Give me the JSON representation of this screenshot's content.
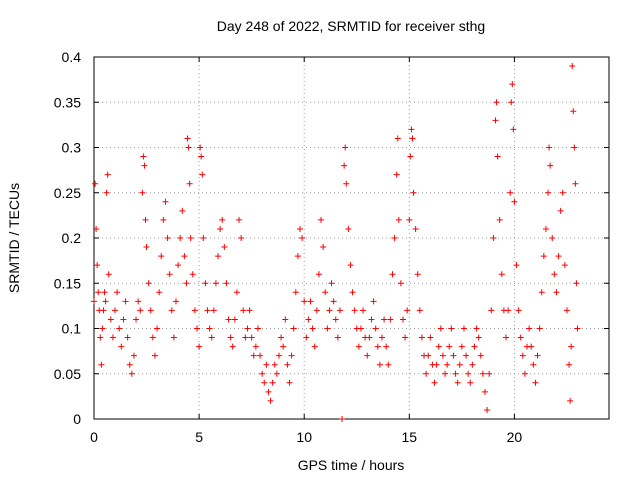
{
  "chart_data": {
    "type": "scatter",
    "title": "Day 248 of 2022, SRMTID for receiver sthg",
    "xlabel": "GPS time / hours",
    "ylabel": "SRMTID / TECUs",
    "xlim": [
      0,
      24.5
    ],
    "ylim": [
      0,
      0.4
    ],
    "xticks": [
      0,
      5,
      10,
      15,
      20
    ],
    "xtick_labels": [
      "0",
      "5",
      "10",
      "15",
      "20"
    ],
    "yticks": [
      0,
      0.05,
      0.1,
      0.15,
      0.2,
      0.25,
      0.3,
      0.35,
      0.4
    ],
    "ytick_labels": [
      "0",
      "0.05",
      "0.1",
      "0.15",
      "0.2",
      "0.25",
      "0.3",
      "0.35",
      "0.4"
    ],
    "grid": true,
    "marker": "plus",
    "color": "#ff0000",
    "series": [
      {
        "name": "SRMTID",
        "points": [
          [
            0.0,
            0.13
          ],
          [
            0.05,
            0.26
          ],
          [
            0.1,
            0.21
          ],
          [
            0.15,
            0.17
          ],
          [
            0.2,
            0.14
          ],
          [
            0.25,
            0.12
          ],
          [
            0.3,
            0.09
          ],
          [
            0.35,
            0.06
          ],
          [
            0.4,
            0.1
          ],
          [
            0.45,
            0.12
          ],
          [
            0.5,
            0.14
          ],
          [
            0.55,
            0.13
          ],
          [
            0.6,
            0.25
          ],
          [
            0.65,
            0.27
          ],
          [
            0.7,
            0.16
          ],
          [
            0.8,
            0.11
          ],
          [
            0.9,
            0.09
          ],
          [
            1.0,
            0.12
          ],
          [
            1.1,
            0.14
          ],
          [
            1.2,
            0.1
          ],
          [
            1.3,
            0.08
          ],
          [
            1.4,
            0.11
          ],
          [
            1.5,
            0.13
          ],
          [
            1.6,
            0.09
          ],
          [
            1.7,
            0.06
          ],
          [
            1.8,
            0.05
          ],
          [
            1.9,
            0.07
          ],
          [
            2.0,
            0.11
          ],
          [
            2.1,
            0.13
          ],
          [
            2.2,
            0.12
          ],
          [
            2.3,
            0.25
          ],
          [
            2.35,
            0.29
          ],
          [
            2.4,
            0.28
          ],
          [
            2.45,
            0.22
          ],
          [
            2.5,
            0.19
          ],
          [
            2.6,
            0.15
          ],
          [
            2.7,
            0.12
          ],
          [
            2.8,
            0.09
          ],
          [
            2.9,
            0.07
          ],
          [
            3.0,
            0.1
          ],
          [
            3.1,
            0.14
          ],
          [
            3.2,
            0.18
          ],
          [
            3.3,
            0.22
          ],
          [
            3.4,
            0.24
          ],
          [
            3.5,
            0.2
          ],
          [
            3.6,
            0.16
          ],
          [
            3.7,
            0.12
          ],
          [
            3.8,
            0.09
          ],
          [
            3.9,
            0.13
          ],
          [
            4.0,
            0.17
          ],
          [
            4.1,
            0.2
          ],
          [
            4.2,
            0.23
          ],
          [
            4.3,
            0.18
          ],
          [
            4.4,
            0.15
          ],
          [
            4.45,
            0.31
          ],
          [
            4.5,
            0.3
          ],
          [
            4.55,
            0.26
          ],
          [
            4.6,
            0.2
          ],
          [
            4.7,
            0.16
          ],
          [
            4.8,
            0.12
          ],
          [
            4.9,
            0.1
          ],
          [
            5.0,
            0.08
          ],
          [
            5.05,
            0.3
          ],
          [
            5.1,
            0.29
          ],
          [
            5.15,
            0.27
          ],
          [
            5.2,
            0.2
          ],
          [
            5.3,
            0.15
          ],
          [
            5.4,
            0.12
          ],
          [
            5.5,
            0.1
          ],
          [
            5.6,
            0.09
          ],
          [
            5.7,
            0.12
          ],
          [
            5.8,
            0.15
          ],
          [
            5.9,
            0.18
          ],
          [
            6.0,
            0.21
          ],
          [
            6.1,
            0.22
          ],
          [
            6.2,
            0.19
          ],
          [
            6.3,
            0.15
          ],
          [
            6.4,
            0.11
          ],
          [
            6.5,
            0.09
          ],
          [
            6.6,
            0.08
          ],
          [
            6.7,
            0.11
          ],
          [
            6.8,
            0.14
          ],
          [
            6.9,
            0.22
          ],
          [
            7.0,
            0.2
          ],
          [
            7.1,
            0.12
          ],
          [
            7.2,
            0.09
          ],
          [
            7.3,
            0.1
          ],
          [
            7.4,
            0.12
          ],
          [
            7.5,
            0.09
          ],
          [
            7.6,
            0.07
          ],
          [
            7.7,
            0.08
          ],
          [
            7.8,
            0.1
          ],
          [
            7.9,
            0.07
          ],
          [
            8.0,
            0.05
          ],
          [
            8.1,
            0.04
          ],
          [
            8.2,
            0.06
          ],
          [
            8.3,
            0.03
          ],
          [
            8.4,
            0.02
          ],
          [
            8.5,
            0.04
          ],
          [
            8.6,
            0.06
          ],
          [
            8.7,
            0.05
          ],
          [
            8.8,
            0.07
          ],
          [
            8.9,
            0.09
          ],
          [
            9.0,
            0.08
          ],
          [
            9.1,
            0.11
          ],
          [
            9.2,
            0.06
          ],
          [
            9.3,
            0.04
          ],
          [
            9.4,
            0.07
          ],
          [
            9.5,
            0.1
          ],
          [
            9.6,
            0.14
          ],
          [
            9.7,
            0.18
          ],
          [
            9.8,
            0.21
          ],
          [
            9.9,
            0.2
          ],
          [
            10.0,
            0.13
          ],
          [
            10.1,
            0.09
          ],
          [
            10.2,
            0.11
          ],
          [
            10.3,
            0.13
          ],
          [
            10.4,
            0.1
          ],
          [
            10.5,
            0.08
          ],
          [
            10.6,
            0.12
          ],
          [
            10.7,
            0.16
          ],
          [
            10.8,
            0.22
          ],
          [
            10.9,
            0.19
          ],
          [
            11.0,
            0.14
          ],
          [
            11.1,
            0.1
          ],
          [
            11.2,
            0.12
          ],
          [
            11.3,
            0.15
          ],
          [
            11.4,
            0.13
          ],
          [
            11.5,
            0.11
          ],
          [
            11.6,
            0.09
          ],
          [
            11.7,
            0.12
          ],
          [
            11.8,
            0.0
          ],
          [
            11.9,
            0.28
          ],
          [
            11.95,
            0.3
          ],
          [
            12.0,
            0.26
          ],
          [
            12.1,
            0.21
          ],
          [
            12.2,
            0.17
          ],
          [
            12.3,
            0.14
          ],
          [
            12.4,
            0.12
          ],
          [
            12.5,
            0.1
          ],
          [
            12.6,
            0.08
          ],
          [
            12.7,
            0.1
          ],
          [
            12.8,
            0.12
          ],
          [
            12.9,
            0.09
          ],
          [
            13.0,
            0.07
          ],
          [
            13.1,
            0.09
          ],
          [
            13.2,
            0.11
          ],
          [
            13.3,
            0.13
          ],
          [
            13.4,
            0.1
          ],
          [
            13.5,
            0.08
          ],
          [
            13.6,
            0.06
          ],
          [
            13.7,
            0.09
          ],
          [
            13.8,
            0.11
          ],
          [
            13.9,
            0.08
          ],
          [
            14.0,
            0.06
          ],
          [
            14.1,
            0.11
          ],
          [
            14.2,
            0.16
          ],
          [
            14.3,
            0.2
          ],
          [
            14.4,
            0.27
          ],
          [
            14.45,
            0.31
          ],
          [
            14.5,
            0.22
          ],
          [
            14.6,
            0.15
          ],
          [
            14.7,
            0.11
          ],
          [
            14.8,
            0.09
          ],
          [
            14.9,
            0.12
          ],
          [
            15.0,
            0.22
          ],
          [
            15.05,
            0.29
          ],
          [
            15.1,
            0.32
          ],
          [
            15.15,
            0.31
          ],
          [
            15.2,
            0.25
          ],
          [
            15.3,
            0.21
          ],
          [
            15.4,
            0.16
          ],
          [
            15.5,
            0.12
          ],
          [
            15.6,
            0.09
          ],
          [
            15.7,
            0.07
          ],
          [
            15.8,
            0.05
          ],
          [
            15.9,
            0.07
          ],
          [
            16.0,
            0.09
          ],
          [
            16.1,
            0.06
          ],
          [
            16.2,
            0.04
          ],
          [
            16.3,
            0.06
          ],
          [
            16.4,
            0.08
          ],
          [
            16.5,
            0.1
          ],
          [
            16.6,
            0.07
          ],
          [
            16.7,
            0.05
          ],
          [
            16.8,
            0.06
          ],
          [
            16.9,
            0.08
          ],
          [
            17.0,
            0.1
          ],
          [
            17.1,
            0.07
          ],
          [
            17.2,
            0.05
          ],
          [
            17.3,
            0.04
          ],
          [
            17.4,
            0.06
          ],
          [
            17.5,
            0.08
          ],
          [
            17.6,
            0.1
          ],
          [
            17.7,
            0.07
          ],
          [
            17.8,
            0.05
          ],
          [
            17.9,
            0.04
          ],
          [
            18.0,
            0.06
          ],
          [
            18.1,
            0.08
          ],
          [
            18.2,
            0.1
          ],
          [
            18.3,
            0.09
          ],
          [
            18.4,
            0.07
          ],
          [
            18.5,
            0.05
          ],
          [
            18.6,
            0.03
          ],
          [
            18.7,
            0.01
          ],
          [
            18.8,
            0.05
          ],
          [
            18.9,
            0.12
          ],
          [
            19.0,
            0.2
          ],
          [
            19.1,
            0.33
          ],
          [
            19.15,
            0.35
          ],
          [
            19.2,
            0.29
          ],
          [
            19.3,
            0.22
          ],
          [
            19.4,
            0.16
          ],
          [
            19.5,
            0.12
          ],
          [
            19.6,
            0.09
          ],
          [
            19.7,
            0.12
          ],
          [
            19.8,
            0.25
          ],
          [
            19.85,
            0.35
          ],
          [
            19.9,
            0.37
          ],
          [
            19.95,
            0.32
          ],
          [
            20.0,
            0.24
          ],
          [
            20.1,
            0.17
          ],
          [
            20.2,
            0.12
          ],
          [
            20.3,
            0.09
          ],
          [
            20.4,
            0.07
          ],
          [
            20.5,
            0.05
          ],
          [
            20.6,
            0.08
          ],
          [
            20.7,
            0.1
          ],
          [
            20.8,
            0.08
          ],
          [
            20.9,
            0.06
          ],
          [
            21.0,
            0.04
          ],
          [
            21.1,
            0.07
          ],
          [
            21.2,
            0.1
          ],
          [
            21.3,
            0.14
          ],
          [
            21.4,
            0.18
          ],
          [
            21.5,
            0.21
          ],
          [
            21.6,
            0.25
          ],
          [
            21.65,
            0.3
          ],
          [
            21.7,
            0.28
          ],
          [
            21.8,
            0.2
          ],
          [
            21.9,
            0.16
          ],
          [
            22.0,
            0.14
          ],
          [
            22.1,
            0.18
          ],
          [
            22.2,
            0.23
          ],
          [
            22.3,
            0.25
          ],
          [
            22.4,
            0.17
          ],
          [
            22.5,
            0.12
          ],
          [
            22.6,
            0.06
          ],
          [
            22.65,
            0.02
          ],
          [
            22.7,
            0.08
          ],
          [
            22.75,
            0.39
          ],
          [
            22.8,
            0.34
          ],
          [
            22.85,
            0.3
          ],
          [
            22.9,
            0.26
          ],
          [
            22.95,
            0.15
          ],
          [
            23.0,
            0.1
          ]
        ]
      }
    ]
  }
}
